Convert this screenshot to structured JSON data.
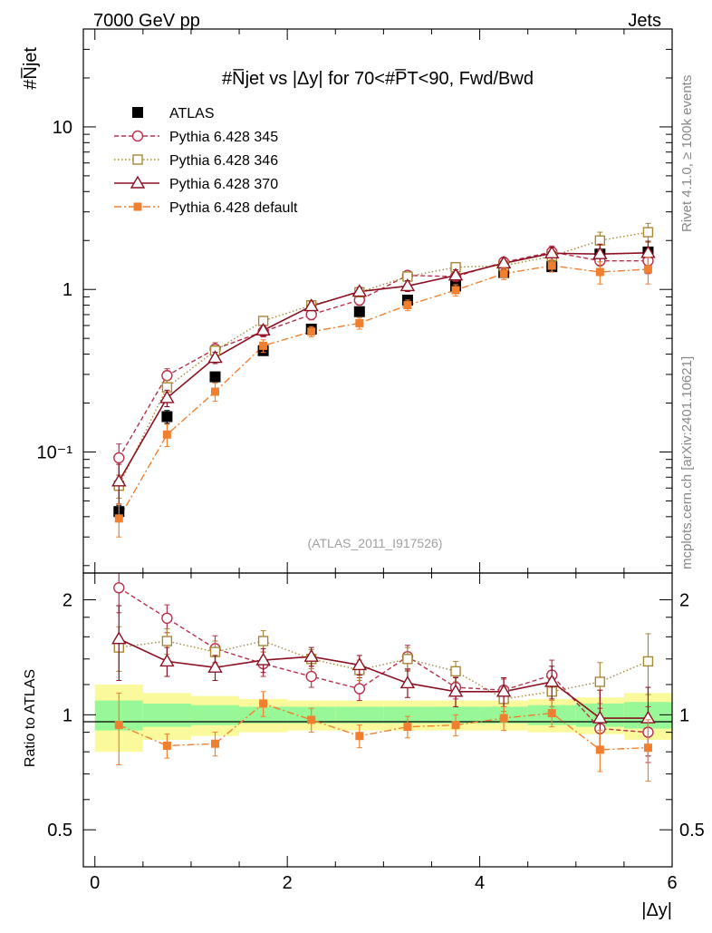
{
  "header": {
    "left": "7000 GeV pp",
    "right": "Jets",
    "ylabel_main": "#N̅jet",
    "ylabel_ratio": "Ratio to ATLAS",
    "xlabel": "|Δy|",
    "title": "#N̅jet vs |Δy| for 70<#P̅T<90, Fwd/Bwd",
    "watermark": "(ATLAS_2011_I917526)",
    "side_right_top": "Rivet 4.1.0, ≥ 100k events",
    "side_right_bottom": "mcplots.cern.ch [arXiv:2401.10621]"
  },
  "colors": {
    "atlas": "#000000",
    "p345": "#b8304a",
    "p346": "#a88838",
    "p370": "#8b1022",
    "pdef": "#f08030",
    "band_inner": "#98f898",
    "band_outer": "#fafa9c"
  },
  "chart_data": [
    {
      "type": "scatter",
      "title": "#N̅jet vs |Δy| for 70<#P̅T<90, Fwd/Bwd",
      "xlabel": "|Δy|",
      "ylabel": "#N̅jet",
      "xscale": "linear",
      "yscale": "log",
      "xlim": [
        -0.12,
        6.0
      ],
      "ylim": [
        0.018,
        40
      ],
      "xticks": [
        0,
        2,
        4,
        6
      ],
      "yticks": [
        {
          "value": 10,
          "label": "10"
        },
        {
          "value": 1,
          "label": "1"
        },
        {
          "value": 0.1,
          "label": "10⁻¹"
        }
      ],
      "x": [
        0.25,
        0.75,
        1.25,
        1.75,
        2.25,
        2.75,
        3.25,
        3.75,
        4.25,
        4.75,
        5.25,
        5.75
      ],
      "legend_position": "top-left",
      "series": [
        {
          "name": "ATLAS",
          "key": "atlas",
          "values": [
            0.043,
            0.165,
            0.29,
            0.42,
            0.57,
            0.73,
            0.86,
            1.05,
            1.27,
            1.38,
            1.65,
            1.7
          ],
          "errors": [
            0.004,
            0.015,
            0.02,
            0.025,
            0.03,
            0.04,
            0.05,
            0.06,
            0.07,
            0.08,
            0.1,
            0.12
          ]
        },
        {
          "name": "Pythia 6.428 345",
          "key": "p345",
          "values": [
            0.092,
            0.295,
            0.43,
            0.55,
            0.7,
            0.86,
            1.22,
            1.2,
            1.47,
            1.7,
            1.5,
            1.5
          ],
          "errors": [
            0.02,
            0.03,
            0.04,
            0.04,
            0.05,
            0.06,
            0.08,
            0.08,
            0.1,
            0.15,
            0.2,
            0.25
          ]
        },
        {
          "name": "Pythia 6.428 346",
          "key": "p346",
          "values": [
            0.062,
            0.25,
            0.42,
            0.64,
            0.8,
            0.96,
            1.2,
            1.37,
            1.4,
            1.6,
            2.0,
            2.25
          ],
          "errors": [
            0.01,
            0.025,
            0.03,
            0.04,
            0.05,
            0.06,
            0.08,
            0.08,
            0.1,
            0.15,
            0.25,
            0.3
          ]
        },
        {
          "name": "Pythia 6.428 370",
          "key": "p370",
          "values": [
            0.066,
            0.215,
            0.38,
            0.56,
            0.79,
            0.97,
            1.05,
            1.22,
            1.45,
            1.67,
            1.65,
            1.68
          ],
          "errors": [
            0.018,
            0.025,
            0.03,
            0.04,
            0.05,
            0.06,
            0.08,
            0.1,
            0.12,
            0.15,
            0.25,
            0.3
          ]
        },
        {
          "name": "Pythia 6.428 default",
          "key": "pdef",
          "values": [
            0.039,
            0.128,
            0.235,
            0.45,
            0.55,
            0.62,
            0.8,
            0.99,
            1.25,
            1.4,
            1.28,
            1.33
          ],
          "errors": [
            0.009,
            0.02,
            0.03,
            0.04,
            0.04,
            0.05,
            0.06,
            0.08,
            0.1,
            0.12,
            0.2,
            0.25
          ]
        }
      ]
    },
    {
      "type": "line",
      "title": "",
      "xlabel": "|Δy|",
      "ylabel": "Ratio to ATLAS",
      "xscale": "linear",
      "yscale": "log",
      "xlim": [
        -0.12,
        6.0
      ],
      "ylim": [
        0.4,
        2.35
      ],
      "xticks": [
        0,
        2,
        4,
        6
      ],
      "yticks": [
        {
          "value": 2,
          "label": "2"
        },
        {
          "value": 1,
          "label": "1"
        },
        {
          "value": 0.5,
          "label": "0.5"
        }
      ],
      "x": [
        0.25,
        0.75,
        1.25,
        1.75,
        2.25,
        2.75,
        3.25,
        3.75,
        4.25,
        4.75,
        5.25,
        5.75
      ],
      "bands": {
        "inner_half_width": [
          0.09,
          0.07,
          0.06,
          0.05,
          0.05,
          0.05,
          0.05,
          0.05,
          0.05,
          0.06,
          0.07,
          0.08
        ],
        "outer_half_width": [
          0.2,
          0.14,
          0.12,
          0.1,
          0.09,
          0.09,
          0.09,
          0.09,
          0.09,
          0.1,
          0.11,
          0.14
        ]
      },
      "series": [
        {
          "name": "Pythia 6.428 345",
          "key": "p345",
          "values": [
            2.15,
            1.79,
            1.49,
            1.36,
            1.26,
            1.17,
            1.42,
            1.18,
            1.16,
            1.27,
            0.92,
            0.9
          ],
          "errors": [
            0.3,
            0.15,
            0.12,
            0.1,
            0.08,
            0.08,
            0.1,
            0.08,
            0.08,
            0.12,
            0.12,
            0.15
          ]
        },
        {
          "name": "Pythia 6.428 346",
          "key": "p346",
          "values": [
            1.5,
            1.56,
            1.46,
            1.56,
            1.4,
            1.31,
            1.4,
            1.3,
            1.1,
            1.15,
            1.22,
            1.38
          ],
          "errors": [
            0.2,
            0.12,
            0.1,
            0.1,
            0.08,
            0.08,
            0.1,
            0.08,
            0.08,
            0.1,
            0.15,
            0.25
          ]
        },
        {
          "name": "Pythia 6.428 370",
          "key": "p370",
          "values": [
            1.58,
            1.38,
            1.33,
            1.39,
            1.42,
            1.35,
            1.21,
            1.15,
            1.15,
            1.22,
            0.98,
            0.98
          ],
          "errors": [
            0.35,
            0.12,
            0.1,
            0.1,
            0.08,
            0.08,
            0.1,
            0.1,
            0.1,
            0.12,
            0.18,
            0.2
          ]
        },
        {
          "name": "Pythia 6.428 default",
          "key": "pdef",
          "values": [
            0.94,
            0.83,
            0.84,
            1.07,
            0.97,
            0.88,
            0.93,
            0.94,
            0.98,
            1.01,
            0.81,
            0.82
          ],
          "errors": [
            0.2,
            0.06,
            0.06,
            0.08,
            0.07,
            0.06,
            0.06,
            0.06,
            0.07,
            0.08,
            0.1,
            0.15
          ]
        }
      ]
    }
  ]
}
